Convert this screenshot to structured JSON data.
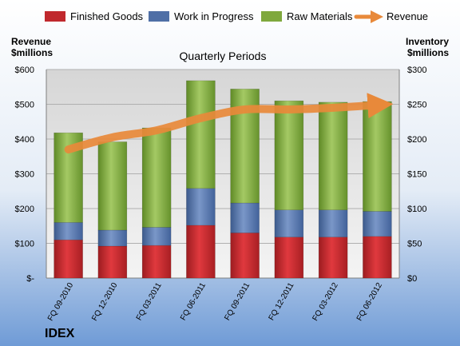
{
  "chart_data": {
    "type": "bar",
    "stacked": true,
    "title": "Quarterly Periods",
    "left_axis_label_line1": "Revenue",
    "left_axis_label_line2": "$millions",
    "right_axis_label_line1": "Inventory",
    "right_axis_label_line2": "$millions",
    "company": "IDEX",
    "categories": [
      "FQ 09-2010",
      "FQ 12-2010",
      "FQ 03-2011",
      "FQ 06-2011",
      "FQ 09-2011",
      "FQ 12-2011",
      "FQ 03-2012",
      "FQ 06-2012"
    ],
    "series": [
      {
        "name": "Finished Goods",
        "color": "#c0282d",
        "axis": "right",
        "values": [
          55,
          46,
          47,
          76,
          65,
          59,
          59,
          60
        ]
      },
      {
        "name": "Work in Progress",
        "color": "#4f6fa6",
        "axis": "right",
        "values": [
          25,
          23,
          26,
          53,
          43,
          39,
          39,
          36
        ]
      },
      {
        "name": "Raw Materials",
        "color": "#7fa83d",
        "axis": "right",
        "values": [
          129,
          127,
          143,
          155,
          164,
          157,
          155,
          158
        ]
      },
      {
        "name": "Revenue",
        "color": "#e8893a",
        "type": "line",
        "axis": "left",
        "values": [
          370,
          405,
          425,
          460,
          485,
          485,
          490,
          498
        ]
      }
    ],
    "left_axis": {
      "min": 0,
      "max": 600,
      "step": 100,
      "tick_labels": [
        "$-",
        "$100",
        "$200",
        "$300",
        "$400",
        "$500",
        "$600"
      ]
    },
    "right_axis": {
      "min": 0,
      "max": 300,
      "step": 50,
      "tick_labels": [
        "$0",
        "$50",
        "$100",
        "$150",
        "$200",
        "$250",
        "$300"
      ]
    },
    "grid": true,
    "legend_position": "top"
  }
}
